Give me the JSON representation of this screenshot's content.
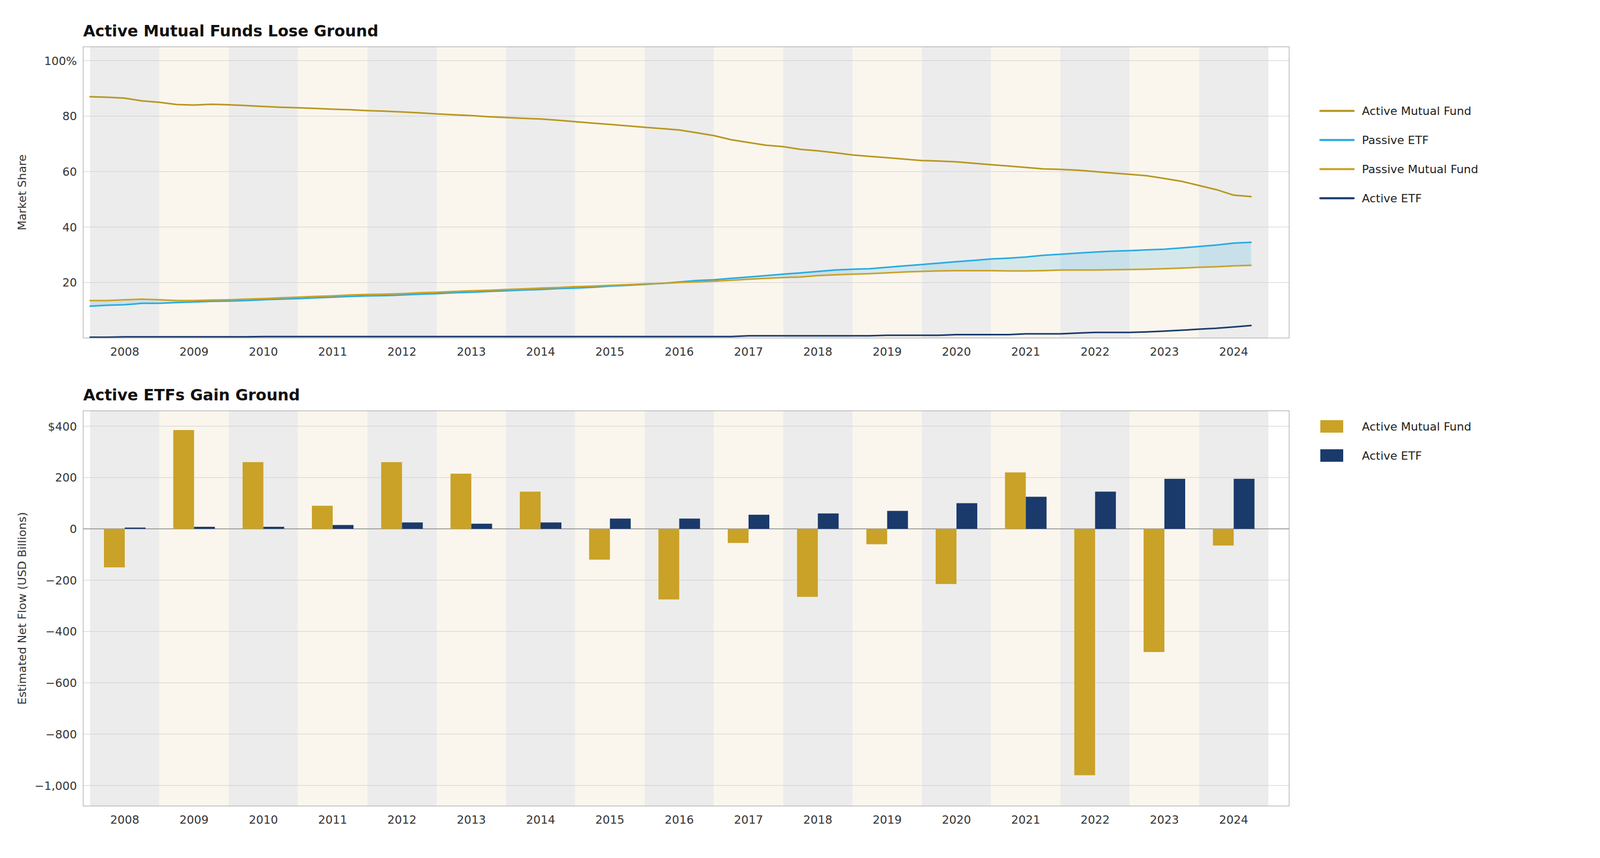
{
  "chart_data": [
    {
      "type": "line",
      "title": "Active Mutual Funds Lose Ground",
      "y_label": "Market Share",
      "x": [
        2007.5,
        2007.75,
        2008.0,
        2008.25,
        2008.5,
        2008.75,
        2009.0,
        2009.25,
        2009.5,
        2009.75,
        2010.0,
        2010.25,
        2010.5,
        2010.75,
        2011.0,
        2011.25,
        2011.5,
        2011.75,
        2012.0,
        2012.25,
        2012.5,
        2012.75,
        2013.0,
        2013.25,
        2013.5,
        2013.75,
        2014.0,
        2014.25,
        2014.5,
        2014.75,
        2015.0,
        2015.25,
        2015.5,
        2015.75,
        2016.0,
        2016.25,
        2016.5,
        2016.75,
        2017.0,
        2017.25,
        2017.5,
        2017.75,
        2018.0,
        2018.25,
        2018.5,
        2018.75,
        2019.0,
        2019.25,
        2019.5,
        2019.75,
        2020.0,
        2020.25,
        2020.5,
        2020.75,
        2021.0,
        2021.25,
        2021.5,
        2021.75,
        2022.0,
        2022.25,
        2022.5,
        2022.75,
        2023.0,
        2023.25,
        2023.5,
        2023.75,
        2024.0,
        2024.25
      ],
      "series": [
        {
          "name": "Active Mutual Fund",
          "color": "#B8971F",
          "values": [
            87,
            86.8,
            86.5,
            85.5,
            85.0,
            84.2,
            84.0,
            84.3,
            84.1,
            83.8,
            83.5,
            83.2,
            83.0,
            82.8,
            82.5,
            82.3,
            82.0,
            81.8,
            81.5,
            81.2,
            80.8,
            80.5,
            80.2,
            79.8,
            79.5,
            79.2,
            79.0,
            78.5,
            78.0,
            77.5,
            77.0,
            76.5,
            76.0,
            75.5,
            75.0,
            74.0,
            73.0,
            71.5,
            70.5,
            69.5,
            69.0,
            68.0,
            67.5,
            66.8,
            66.0,
            65.5,
            65.0,
            64.5,
            64.0,
            63.8,
            63.5,
            63.0,
            62.5,
            62.0,
            61.5,
            61.0,
            60.8,
            60.5,
            60.0,
            59.5,
            59.0,
            58.5,
            57.5,
            56.5,
            55.0,
            53.5,
            51.5,
            51.0
          ]
        },
        {
          "name": "Passive ETF",
          "color": "#29ABE2",
          "values": [
            11.5,
            11.8,
            12.0,
            12.5,
            12.5,
            12.8,
            13.0,
            13.2,
            13.3,
            13.5,
            13.8,
            14.0,
            14.2,
            14.5,
            14.7,
            15.0,
            15.2,
            15.3,
            15.5,
            15.8,
            16.0,
            16.3,
            16.5,
            16.8,
            17.0,
            17.3,
            17.5,
            17.8,
            18.0,
            18.3,
            18.7,
            19.0,
            19.3,
            19.7,
            20.2,
            20.7,
            21.0,
            21.5,
            22.0,
            22.5,
            23.0,
            23.5,
            24.0,
            24.5,
            24.8,
            25.0,
            25.5,
            26.0,
            26.5,
            27.0,
            27.5,
            28.0,
            28.5,
            28.8,
            29.2,
            29.8,
            30.2,
            30.6,
            31.0,
            31.3,
            31.5,
            31.8,
            32.0,
            32.5,
            33.0,
            33.5,
            34.2,
            34.5
          ]
        },
        {
          "name": "Passive Mutual Fund",
          "color": "#C9A227",
          "values": [
            13.5,
            13.5,
            13.8,
            14.0,
            13.8,
            13.5,
            13.5,
            13.7,
            13.8,
            14.0,
            14.2,
            14.5,
            14.7,
            15.0,
            15.2,
            15.5,
            15.7,
            15.8,
            16.0,
            16.3,
            16.5,
            16.8,
            17.0,
            17.2,
            17.5,
            17.7,
            18.0,
            18.2,
            18.5,
            18.7,
            19.0,
            19.2,
            19.5,
            19.7,
            20.0,
            20.2,
            20.5,
            20.8,
            21.2,
            21.5,
            21.8,
            22.0,
            22.5,
            22.8,
            23.0,
            23.2,
            23.5,
            23.8,
            24.0,
            24.2,
            24.3,
            24.3,
            24.3,
            24.2,
            24.2,
            24.3,
            24.5,
            24.5,
            24.5,
            24.6,
            24.7,
            24.8,
            25.0,
            25.2,
            25.5,
            25.7,
            26.0,
            26.2
          ]
        },
        {
          "name": "Active ETF",
          "color": "#1A3A6B",
          "values": [
            0.3,
            0.3,
            0.4,
            0.4,
            0.4,
            0.4,
            0.4,
            0.4,
            0.4,
            0.4,
            0.5,
            0.5,
            0.5,
            0.5,
            0.5,
            0.5,
            0.5,
            0.5,
            0.5,
            0.5,
            0.5,
            0.5,
            0.5,
            0.5,
            0.5,
            0.5,
            0.5,
            0.5,
            0.5,
            0.5,
            0.5,
            0.5,
            0.5,
            0.5,
            0.5,
            0.5,
            0.5,
            0.5,
            0.8,
            0.8,
            0.8,
            0.8,
            0.8,
            0.8,
            0.8,
            0.8,
            1.0,
            1.0,
            1.0,
            1.0,
            1.2,
            1.2,
            1.2,
            1.2,
            1.5,
            1.5,
            1.5,
            1.8,
            2.0,
            2.0,
            2.0,
            2.2,
            2.5,
            2.8,
            3.2,
            3.5,
            4.0,
            4.5
          ]
        }
      ],
      "xlim": [
        2007.4,
        2024.8
      ],
      "xticks": [
        2008,
        2009,
        2010,
        2011,
        2012,
        2013,
        2014,
        2015,
        2016,
        2017,
        2018,
        2019,
        2020,
        2021,
        2022,
        2023,
        2024
      ],
      "ylim": [
        0,
        105
      ],
      "yticks": [
        20,
        40,
        60,
        80,
        {
          "value": 100,
          "label": "100%"
        }
      ],
      "grid": true,
      "legend": "right"
    },
    {
      "type": "bar",
      "title": "Active ETFs Gain Ground",
      "y_label": "Estimated Net Flow (USD Billions)",
      "x": [
        2008,
        2009,
        2010,
        2011,
        2012,
        2013,
        2014,
        2015,
        2016,
        2017,
        2018,
        2019,
        2020,
        2021,
        2022,
        2023,
        2024
      ],
      "series": [
        {
          "name": "Active Mutual Fund",
          "color": "#C9A227",
          "values": [
            -150,
            385,
            260,
            90,
            260,
            215,
            145,
            -120,
            -275,
            -55,
            -265,
            -60,
            -215,
            220,
            -960,
            -480,
            -65
          ]
        },
        {
          "name": "Active ETF",
          "color": "#1A3A6B",
          "values": [
            5,
            8,
            8,
            15,
            25,
            20,
            25,
            40,
            40,
            55,
            60,
            70,
            100,
            125,
            145,
            195,
            195
          ]
        }
      ],
      "xlim": [
        2007.4,
        2024.8
      ],
      "xticks": [
        2008,
        2009,
        2010,
        2011,
        2012,
        2013,
        2014,
        2015,
        2016,
        2017,
        2018,
        2019,
        2020,
        2021,
        2022,
        2023,
        2024
      ],
      "ylim": [
        -1080,
        460
      ],
      "yticks": [
        {
          "value": -1000,
          "label": "−1,000"
        },
        {
          "value": -800,
          "label": "−800"
        },
        {
          "value": -600,
          "label": "−600"
        },
        {
          "value": -400,
          "label": "−400"
        },
        {
          "value": -200,
          "label": "−200"
        },
        0,
        200,
        {
          "value": 400,
          "label": "$400"
        }
      ],
      "grid": true,
      "legend": "right"
    }
  ]
}
